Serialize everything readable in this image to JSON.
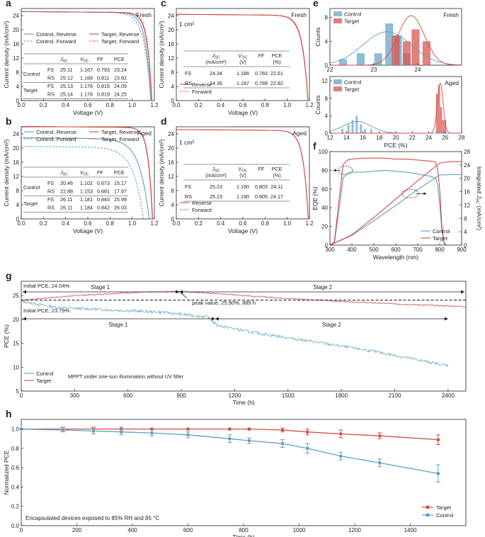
{
  "colors": {
    "control": "#5b9fbf",
    "target": "#d24b45",
    "control_fill": "#6aa6c7",
    "target_fill": "#d8554f"
  },
  "panels": {
    "a": {
      "label": "a",
      "tag": "Fresh",
      "xlabel": "Voltage (V)",
      "ylabel": "Current density (mA/cm²)",
      "legend": [
        "Control, Reverse",
        "Target, Reverse",
        "Control, Forward",
        "Target, Forward"
      ],
      "table_header": [
        "J_SC",
        "V_OC",
        "FF",
        "PCE"
      ],
      "table_rows": [
        {
          "group": "Control",
          "dir": "FS",
          "vals": [
            "25.11",
            "1.167",
            "0.793",
            "23.24"
          ]
        },
        {
          "group": "",
          "dir": "RS",
          "vals": [
            "25.12",
            "1.169",
            "0.811",
            "23.82"
          ]
        },
        {
          "group": "Target",
          "dir": "FS",
          "vals": [
            "25.13",
            "1.176",
            "0.815",
            "24.09"
          ]
        },
        {
          "group": "",
          "dir": "RS",
          "vals": [
            "25.14",
            "1.178",
            "0.819",
            "24.25"
          ]
        }
      ]
    },
    "b": {
      "label": "b",
      "tag": "Aged",
      "xlabel": "Voltage (V)",
      "ylabel": "Current density (mA/cm²)",
      "legend": [
        "Control, Reverse",
        "Target, Reverse",
        "Control, Forward",
        "Target, Forward"
      ],
      "table_header": [
        "J_SC",
        "V_OC",
        "FF",
        "PCE"
      ],
      "table_rows": [
        {
          "group": "Control",
          "dir": "FS",
          "vals": [
            "20.46",
            "1.102",
            "0.673",
            "15.17"
          ]
        },
        {
          "group": "",
          "dir": "RS",
          "vals": [
            "22.88",
            "1.153",
            "0.681",
            "17.97"
          ]
        },
        {
          "group": "Target",
          "dir": "FS",
          "vals": [
            "26.11",
            "1.181",
            "0.843",
            "25.99"
          ]
        },
        {
          "group": "",
          "dir": "RS",
          "vals": [
            "26.11",
            "1.184",
            "0.842",
            "26.03"
          ]
        }
      ]
    },
    "c": {
      "label": "c",
      "tag": "Fresh",
      "area": "1 cm²",
      "xlabel": "Voltage (V)",
      "ylabel": "Current density (mA/cm²)",
      "legend": [
        "Reverse",
        "Forward"
      ],
      "table_header": [
        "J_SC (mA/cm²)",
        "V_OC (V)",
        "FF",
        "PCE (%)"
      ],
      "table_rows": [
        {
          "dir": "FS",
          "vals": [
            "24.34",
            "1.186",
            "0.783",
            "22.61"
          ]
        },
        {
          "dir": "RS",
          "vals": [
            "24.36",
            "1.187",
            "0.789",
            "22.82"
          ]
        }
      ]
    },
    "d": {
      "label": "d",
      "tag": "Aged",
      "area": "1 cm²",
      "xlabel": "Voltage (V)",
      "ylabel": "Current density (mA/cm²)",
      "legend": [
        "Reverse",
        "Forward"
      ],
      "table_header": [
        "J_SC (mA/cm²)",
        "V_OC (V)",
        "FF",
        "PCE (%)"
      ],
      "table_rows": [
        {
          "dir": "FS",
          "vals": [
            "25.23",
            "1.190",
            "0.803",
            "24.11"
          ]
        },
        {
          "dir": "RS",
          "vals": [
            "25.23",
            "1.190",
            "0.805",
            "24.17"
          ]
        }
      ]
    },
    "e": {
      "label": "e",
      "tag_top": "Fresh",
      "tag_bottom": "Aged",
      "xlabel": "PCE (%)",
      "ylabel": "Counts",
      "legend": [
        "Control",
        "Target"
      ]
    },
    "f": {
      "label": "f",
      "xlabel": "Wavelength (nm)",
      "ylabel_left": "EQE (%)",
      "ylabel_right": "Integrated J_SC (mA/cm²)",
      "legend": [
        "Control",
        "Target"
      ]
    },
    "g": {
      "label": "g",
      "xlabel": "Time (h)",
      "ylabel": "PCE (%)",
      "initial_target": "Initial PCE, 24.04%",
      "initial_control": "Initial PCE, 23.79%",
      "stage1": "Stage 1",
      "stage2": "Stage 2",
      "peak": "peak value, 25.90%, 889 h",
      "legend": [
        "Control",
        "Target"
      ],
      "note": "MPPT under one-sun illumination without UV filter"
    },
    "h": {
      "label": "h",
      "xlabel": "Time (h)",
      "ylabel": "Normalized PCE",
      "legend": [
        "Target",
        "Control"
      ],
      "note": "Encapsulated devices exposed to 85% RH and 85 °C"
    }
  },
  "chart_data": [
    {
      "panel": "a",
      "type": "line",
      "xlabel": "Voltage (V)",
      "ylabel": "Current density (mA/cm²)",
      "xlim": [
        0,
        1.2
      ],
      "ylim": [
        0,
        26
      ],
      "xticks": [
        0.0,
        0.2,
        0.4,
        0.6,
        0.8,
        1.0,
        1.2
      ],
      "yticks": [
        0,
        4,
        8,
        12,
        16,
        20,
        24
      ],
      "series": [
        {
          "name": "Control, Reverse",
          "jsc": 25.12,
          "voc": 1.169,
          "knee": 0.048
        },
        {
          "name": "Target, Reverse",
          "jsc": 25.14,
          "voc": 1.178,
          "knee": 0.04
        },
        {
          "name": "Control, Forward",
          "jsc": 25.11,
          "voc": 1.167,
          "knee": 0.058
        },
        {
          "name": "Target, Forward",
          "jsc": 25.13,
          "voc": 1.176,
          "knee": 0.042
        }
      ]
    },
    {
      "panel": "b",
      "type": "line",
      "xlabel": "Voltage (V)",
      "ylabel": "Current density (mA/cm²)",
      "xlim": [
        0,
        1.2
      ],
      "ylim": [
        0,
        26
      ],
      "xticks": [
        0.0,
        0.2,
        0.4,
        0.6,
        0.8,
        1.0,
        1.2
      ],
      "yticks": [
        0,
        4,
        8,
        12,
        16,
        20,
        24
      ],
      "series": [
        {
          "name": "Control, Reverse",
          "jsc": 22.88,
          "voc": 1.153,
          "knee": 0.085
        },
        {
          "name": "Target, Reverse",
          "jsc": 26.11,
          "voc": 1.184,
          "knee": 0.038
        },
        {
          "name": "Control, Forward",
          "jsc": 20.46,
          "voc": 1.102,
          "knee": 0.09
        },
        {
          "name": "Target, Forward",
          "jsc": 26.11,
          "voc": 1.181,
          "knee": 0.038
        }
      ]
    },
    {
      "panel": "c",
      "type": "line",
      "xlabel": "Voltage (V)",
      "ylabel": "Current density (mA/cm²)",
      "xlim": [
        0,
        1.2
      ],
      "ylim": [
        0,
        26
      ],
      "xticks": [
        0.0,
        0.2,
        0.4,
        0.6,
        0.8,
        1.0,
        1.2
      ],
      "yticks": [
        0,
        4,
        8,
        12,
        16,
        20,
        24
      ],
      "series": [
        {
          "name": "Reverse",
          "jsc": 24.36,
          "voc": 1.187,
          "knee": 0.05
        },
        {
          "name": "Forward",
          "jsc": 24.34,
          "voc": 1.186,
          "knee": 0.052
        }
      ]
    },
    {
      "panel": "d",
      "type": "line",
      "xlabel": "Voltage (V)",
      "ylabel": "Current density (mA/cm²)",
      "xlim": [
        0,
        1.2
      ],
      "ylim": [
        0,
        26
      ],
      "xticks": [
        0.0,
        0.2,
        0.4,
        0.6,
        0.8,
        1.0,
        1.2
      ],
      "yticks": [
        0,
        4,
        8,
        12,
        16,
        20,
        24
      ],
      "series": [
        {
          "name": "Reverse",
          "jsc": 25.23,
          "voc": 1.19,
          "knee": 0.045
        },
        {
          "name": "Forward",
          "jsc": 25.23,
          "voc": 1.19,
          "knee": 0.046
        }
      ]
    },
    {
      "panel": "e-fresh",
      "type": "bar",
      "xlabel": "PCE (%)",
      "ylabel": "Counts",
      "xlim": [
        22,
        25
      ],
      "ylim": [
        0,
        9.5
      ],
      "xticks": [
        22,
        23,
        24
      ],
      "yticks": [
        0,
        4,
        8
      ],
      "series": [
        {
          "name": "Control",
          "bins": [
            [
              22.3,
              1
            ],
            [
              22.7,
              2
            ],
            [
              23.1,
              2
            ],
            [
              23.35,
              7
            ],
            [
              23.55,
              5
            ],
            [
              23.75,
              2
            ]
          ],
          "fit_mean": 23.3,
          "fit_sd": 0.55,
          "fit_peak": 5.6
        },
        {
          "name": "Target",
          "bins": [
            [
              23.5,
              5
            ],
            [
              23.75,
              4
            ],
            [
              23.95,
              6
            ],
            [
              24.2,
              4
            ]
          ],
          "fit_mean": 23.85,
          "fit_sd": 0.3,
          "fit_peak": 8.3
        }
      ]
    },
    {
      "panel": "e-aged",
      "type": "bar",
      "xlabel": "PCE (%)",
      "ylabel": "Counts",
      "xlim": [
        12,
        28
      ],
      "ylim": [
        0,
        13
      ],
      "xticks": [
        12,
        14,
        16,
        18,
        20,
        22,
        24,
        26,
        28
      ],
      "yticks": [
        0,
        4,
        8,
        12
      ],
      "series": [
        {
          "name": "Control",
          "bins": [
            [
              13.5,
              1
            ],
            [
              14.25,
              2
            ],
            [
              14.75,
              3
            ],
            [
              15.25,
              4
            ],
            [
              15.75,
              2
            ],
            [
              16.25,
              1
            ],
            [
              17.0,
              1
            ]
          ],
          "fit_mean": 15.3,
          "fit_sd": 1.7,
          "fit_peak": 2.7
        },
        {
          "name": "Target",
          "bins": [
            [
              25.0,
              9
            ],
            [
              25.25,
              11
            ],
            [
              25.5,
              6
            ],
            [
              25.75,
              3
            ],
            [
              26.0,
              3
            ]
          ],
          "fit_mean": 25.4,
          "fit_sd": 0.35,
          "fit_peak": 11.5
        }
      ]
    },
    {
      "panel": "f",
      "type": "line",
      "xlabel": "Wavelength (nm)",
      "ylabel": "EQE (%)",
      "ylabel_right": "Integrated J_SC (mA/cm²)",
      "xlim": [
        300,
        900
      ],
      "ylim": [
        0,
        100
      ],
      "ylim_right": [
        0,
        28
      ],
      "xticks": [
        300,
        400,
        500,
        600,
        700,
        800,
        900
      ],
      "yticks": [
        0,
        20,
        40,
        60,
        80,
        100
      ],
      "yticks_right": [
        0,
        4,
        8,
        12,
        16,
        20,
        24,
        28
      ],
      "series": [
        {
          "name": "Control EQE",
          "x": [
            300,
            320,
            340,
            360,
            380,
            400,
            450,
            500,
            550,
            600,
            650,
            700,
            750,
            780,
            790,
            800,
            810,
            820,
            830
          ],
          "y": [
            0,
            2,
            35,
            72,
            77,
            78,
            78,
            79,
            80,
            79,
            78,
            76,
            74,
            72,
            65,
            45,
            15,
            2,
            0
          ]
        },
        {
          "name": "Target EQE",
          "x": [
            300,
            320,
            340,
            360,
            380,
            400,
            450,
            500,
            550,
            600,
            650,
            700,
            750,
            780,
            790,
            800,
            810,
            820,
            830
          ],
          "y": [
            0,
            3,
            45,
            86,
            91,
            92,
            93,
            93,
            93,
            92,
            92,
            91,
            90,
            89,
            82,
            60,
            20,
            3,
            0
          ]
        },
        {
          "name": "Control J_SC",
          "x": [
            300,
            400,
            500,
            600,
            700,
            800,
            850,
            900
          ],
          "y": [
            0,
            2.9,
            7.3,
            11.9,
            16.7,
            21.0,
            21.1,
            21.1
          ]
        },
        {
          "name": "Target J_SC",
          "x": [
            300,
            400,
            500,
            600,
            700,
            800,
            850,
            900
          ],
          "y": [
            0,
            3.1,
            8.3,
            13.8,
            19.3,
            24.6,
            25.0,
            25.0
          ]
        }
      ]
    },
    {
      "panel": "g",
      "type": "line",
      "xlabel": "Time (h)",
      "ylabel": "PCE (%)",
      "xlim": [
        0,
        2500
      ],
      "ylim": [
        5,
        28
      ],
      "xticks": [
        0,
        300,
        600,
        900,
        1200,
        1500,
        1800,
        2100,
        2400
      ],
      "yticks": [
        5,
        10,
        15,
        20,
        25
      ],
      "series": [
        {
          "name": "Target",
          "x": [
            0,
            300,
            600,
            889,
            1100,
            1500,
            1900,
            2200,
            2500
          ],
          "y": [
            24.04,
            25.0,
            25.6,
            25.9,
            25.4,
            24.4,
            23.6,
            23.1,
            22.7
          ]
        },
        {
          "name": "Control",
          "x": [
            0,
            200,
            500,
            800,
            1050,
            1100,
            1300,
            1600,
            2000,
            2400
          ],
          "y": [
            23.79,
            22.5,
            22.0,
            21.5,
            20.5,
            18.8,
            17.3,
            15.6,
            13.2,
            10.3
          ]
        }
      ],
      "reference_line": 24.04
    },
    {
      "panel": "h",
      "type": "line",
      "xlabel": "Time (h)",
      "ylabel": "Normalized PCE",
      "xlim": [
        0,
        1600
      ],
      "ylim": [
        0,
        1.1
      ],
      "xticks": [
        0,
        200,
        400,
        600,
        800,
        1000,
        1200,
        1400
      ],
      "yticks": [
        0,
        0.2,
        0.4,
        0.6,
        0.8,
        1.0
      ],
      "series": [
        {
          "name": "Target",
          "x": [
            0,
            150,
            260,
            360,
            470,
            600,
            750,
            820,
            940,
            1030,
            1150,
            1290,
            1500
          ],
          "y": [
            1.0,
            1.0,
            1.0,
            1.0,
            1.0,
            1.0,
            1.0,
            1.0,
            0.99,
            0.97,
            0.95,
            0.93,
            0.89
          ],
          "err": [
            0,
            0.02,
            0.02,
            0.02,
            0.01,
            0.01,
            0.01,
            0.01,
            0.02,
            0.03,
            0.04,
            0.03,
            0.05
          ]
        },
        {
          "name": "Control",
          "x": [
            0,
            150,
            260,
            360,
            470,
            600,
            750,
            820,
            940,
            1030,
            1150,
            1290,
            1500
          ],
          "y": [
            1.0,
            0.99,
            0.98,
            0.97,
            0.96,
            0.94,
            0.9,
            0.88,
            0.85,
            0.8,
            0.72,
            0.65,
            0.54
          ],
          "err": [
            0,
            0.02,
            0.03,
            0.03,
            0.03,
            0.03,
            0.04,
            0.03,
            0.04,
            0.05,
            0.04,
            0.04,
            0.09
          ]
        }
      ]
    }
  ]
}
